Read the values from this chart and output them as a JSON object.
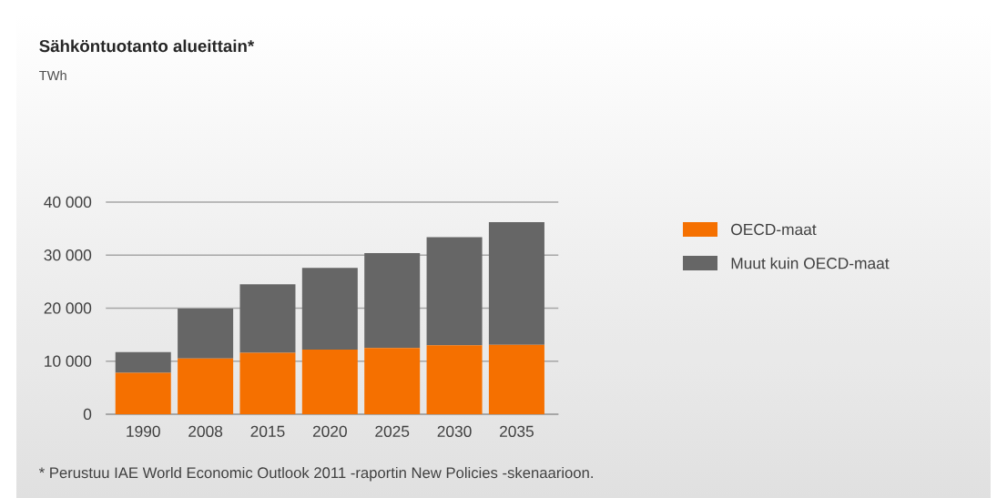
{
  "chart_data": {
    "type": "bar",
    "title": "Sähköntuotanto alueittain*",
    "subtitle": "TWh",
    "categories": [
      "1990",
      "2008",
      "2015",
      "2020",
      "2025",
      "2030",
      "2035"
    ],
    "stacked": true,
    "series": [
      {
        "name": "OECD-maat",
        "color": "#f57000",
        "values": [
          7800,
          10500,
          11600,
          12200,
          12500,
          13000,
          13100
        ]
      },
      {
        "name": "Muut kuin OECD-maat",
        "color": "#666666",
        "values": [
          3900,
          9400,
          12900,
          15400,
          17900,
          20400,
          23100
        ]
      }
    ],
    "ylim": [
      0,
      40000
    ],
    "yticks": [
      {
        "value": 0,
        "label": "0"
      },
      {
        "value": 10000,
        "label": "10 000"
      },
      {
        "value": 20000,
        "label": "20 000"
      },
      {
        "value": 30000,
        "label": "30 000"
      },
      {
        "value": 40000,
        "label": "40 000"
      }
    ],
    "grid": "y",
    "legend": "right",
    "annotations": [
      "* Perustuu IAE World Economic Outlook 2011 -raportin New Policies -skenaarioon."
    ]
  }
}
